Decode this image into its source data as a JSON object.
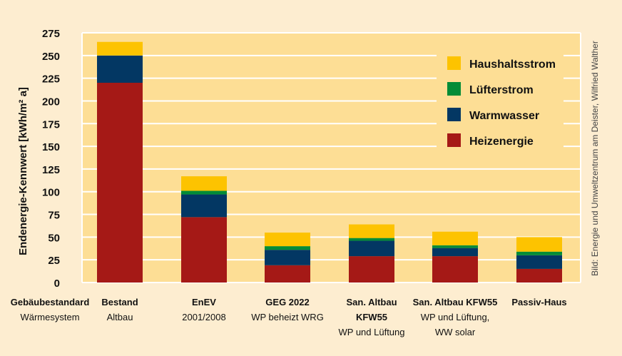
{
  "chart_data": {
    "type": "bar",
    "stacked": true,
    "ylabel": "Endenergie-Kennwert [kWh/m² a]",
    "ylim": [
      0,
      275
    ],
    "yticks": [
      0,
      25,
      50,
      75,
      100,
      125,
      150,
      175,
      200,
      225,
      250,
      275
    ],
    "grid": true,
    "legend_position": "top-right",
    "row_header": {
      "line1": "Gebäubestandard",
      "line2": "Wärmesystem"
    },
    "categories": [
      {
        "line1": "Bestand",
        "line2": "Altbau",
        "line3": ""
      },
      {
        "line1": "EnEV",
        "line2": "2001/2008",
        "line3": ""
      },
      {
        "line1": "GEG 2022",
        "line2": "WP beheizt WRG",
        "line3": ""
      },
      {
        "line1": "San. Altbau",
        "line2": "KFW55",
        "line3": "WP und Lüftung"
      },
      {
        "line1": "San. Altbau KFW55",
        "line2": "WP und Lüftung,",
        "line3": "WW solar"
      },
      {
        "line1": "Passiv-Haus",
        "line2": "",
        "line3": ""
      }
    ],
    "series": [
      {
        "name": "Heizenergie",
        "color": "#a51916",
        "values": [
          220,
          72,
          19,
          29,
          29,
          15
        ]
      },
      {
        "name": "Warmwasser",
        "color": "#033763",
        "values": [
          30,
          25,
          17,
          17,
          9,
          15
        ]
      },
      {
        "name": "Lüfterstrom",
        "color": "#038c37",
        "values": [
          0,
          4,
          4,
          3,
          3,
          4
        ]
      },
      {
        "name": "Haushaltsstrom",
        "color": "#fdc300",
        "values": [
          15,
          16,
          15,
          15,
          15,
          16
        ]
      }
    ],
    "legend_order": [
      "Haushaltsstrom",
      "Lüfterstrom",
      "Warmwasser",
      "Heizenergie"
    ],
    "credit": "Bild: Energie und Umweltzentrum am Deister, Wilfried Walther",
    "colors": {
      "page_background": "#fdedd0",
      "plot_background": "#fdde95",
      "grid": "#ffffff"
    }
  }
}
